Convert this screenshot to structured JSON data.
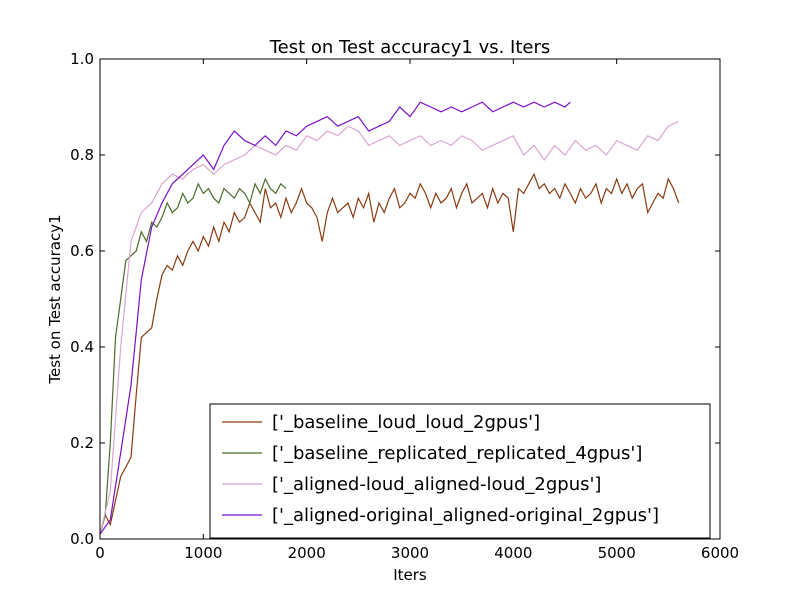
{
  "chart_data": {
    "type": "line",
    "title": "Test on Test accuracy1  vs. Iters",
    "xlabel": "Iters",
    "ylabel": "Test on Test accuracy1",
    "xlim": [
      0,
      6000
    ],
    "ylim": [
      0.0,
      1.0
    ],
    "xticks": [
      "0",
      "1000",
      "2000",
      "3000",
      "4000",
      "5000",
      "6000"
    ],
    "yticks": [
      "0.0",
      "0.2",
      "0.4",
      "0.6",
      "0.8",
      "1.0"
    ],
    "grid": false,
    "legend_position": "lower-right",
    "series": [
      {
        "name": "['_baseline_loud_loud_2gpus']",
        "color": "#8B3A0F",
        "x": [
          0,
          50,
          100,
          150,
          200,
          250,
          300,
          350,
          400,
          450,
          500,
          550,
          600,
          650,
          700,
          750,
          800,
          850,
          900,
          950,
          1000,
          1050,
          1100,
          1150,
          1200,
          1250,
          1300,
          1350,
          1400,
          1450,
          1500,
          1550,
          1600,
          1650,
          1700,
          1750,
          1800,
          1850,
          1900,
          1950,
          2000,
          2050,
          2100,
          2150,
          2200,
          2250,
          2300,
          2350,
          2400,
          2450,
          2500,
          2550,
          2600,
          2650,
          2700,
          2750,
          2800,
          2850,
          2900,
          2950,
          3000,
          3050,
          3100,
          3150,
          3200,
          3250,
          3300,
          3350,
          3400,
          3450,
          3500,
          3550,
          3600,
          3650,
          3700,
          3750,
          3800,
          3850,
          3900,
          3950,
          4000,
          4050,
          4100,
          4150,
          4200,
          4250,
          4300,
          4350,
          4400,
          4450,
          4500,
          4550,
          4600,
          4650,
          4700,
          4750,
          4800,
          4850,
          4900,
          4950,
          5000,
          5050,
          5100,
          5150,
          5200,
          5250,
          5300,
          5350,
          5400,
          5450,
          5500,
          5550,
          5600
        ],
        "values": [
          0.01,
          0.05,
          0.03,
          0.08,
          0.13,
          0.15,
          0.17,
          0.3,
          0.42,
          0.43,
          0.44,
          0.5,
          0.55,
          0.57,
          0.56,
          0.59,
          0.57,
          0.6,
          0.62,
          0.6,
          0.63,
          0.61,
          0.65,
          0.62,
          0.66,
          0.64,
          0.68,
          0.66,
          0.67,
          0.7,
          0.68,
          0.66,
          0.73,
          0.69,
          0.7,
          0.67,
          0.71,
          0.68,
          0.7,
          0.73,
          0.7,
          0.69,
          0.67,
          0.62,
          0.68,
          0.71,
          0.68,
          0.69,
          0.7,
          0.67,
          0.71,
          0.69,
          0.72,
          0.66,
          0.7,
          0.68,
          0.71,
          0.73,
          0.69,
          0.7,
          0.72,
          0.71,
          0.74,
          0.72,
          0.69,
          0.72,
          0.7,
          0.71,
          0.73,
          0.69,
          0.72,
          0.74,
          0.7,
          0.71,
          0.72,
          0.69,
          0.73,
          0.7,
          0.72,
          0.71,
          0.64,
          0.73,
          0.72,
          0.74,
          0.76,
          0.73,
          0.74,
          0.72,
          0.73,
          0.71,
          0.74,
          0.72,
          0.7,
          0.73,
          0.71,
          0.72,
          0.74,
          0.7,
          0.73,
          0.72,
          0.75,
          0.72,
          0.74,
          0.71,
          0.73,
          0.74,
          0.68,
          0.7,
          0.72,
          0.71,
          0.75,
          0.73,
          0.7
        ]
      },
      {
        "name": "['_baseline_replicated_replicated_4gpus']",
        "color": "#4B6B2A",
        "x": [
          0,
          50,
          100,
          150,
          200,
          250,
          300,
          350,
          400,
          450,
          500,
          550,
          600,
          650,
          700,
          750,
          800,
          850,
          900,
          950,
          1000,
          1050,
          1100,
          1150,
          1200,
          1250,
          1300,
          1350,
          1400,
          1450,
          1500,
          1550,
          1600,
          1650,
          1700,
          1750,
          1800
        ],
        "values": [
          0.01,
          0.05,
          0.2,
          0.42,
          0.5,
          0.58,
          0.59,
          0.6,
          0.64,
          0.62,
          0.66,
          0.65,
          0.67,
          0.7,
          0.68,
          0.69,
          0.72,
          0.7,
          0.71,
          0.74,
          0.72,
          0.73,
          0.71,
          0.7,
          0.73,
          0.72,
          0.71,
          0.73,
          0.72,
          0.7,
          0.74,
          0.72,
          0.75,
          0.73,
          0.72,
          0.74,
          0.73
        ]
      },
      {
        "name": "['_aligned-loud_aligned-loud_2gpus']",
        "color": "#D8A8D0",
        "x": [
          0,
          100,
          200,
          300,
          400,
          500,
          600,
          700,
          800,
          900,
          1000,
          1100,
          1200,
          1300,
          1400,
          1500,
          1600,
          1700,
          1800,
          1900,
          2000,
          2100,
          2200,
          2300,
          2400,
          2500,
          2600,
          2700,
          2800,
          2900,
          3000,
          3100,
          3200,
          3300,
          3400,
          3500,
          3600,
          3700,
          3800,
          3900,
          4000,
          4100,
          4200,
          4300,
          4400,
          4500,
          4600,
          4700,
          4800,
          4900,
          5000,
          5100,
          5200,
          5300,
          5400,
          5500,
          5600
        ],
        "values": [
          0.01,
          0.1,
          0.4,
          0.62,
          0.68,
          0.7,
          0.74,
          0.76,
          0.75,
          0.77,
          0.78,
          0.76,
          0.78,
          0.79,
          0.8,
          0.82,
          0.81,
          0.8,
          0.82,
          0.81,
          0.84,
          0.83,
          0.85,
          0.84,
          0.86,
          0.85,
          0.82,
          0.83,
          0.84,
          0.82,
          0.83,
          0.84,
          0.82,
          0.83,
          0.82,
          0.84,
          0.83,
          0.81,
          0.82,
          0.83,
          0.84,
          0.8,
          0.82,
          0.79,
          0.82,
          0.8,
          0.83,
          0.81,
          0.82,
          0.8,
          0.83,
          0.82,
          0.81,
          0.84,
          0.83,
          0.86,
          0.87
        ]
      },
      {
        "name": "['_aligned-original_aligned-original_2gpus']",
        "color": "#7A0FC8",
        "x": [
          0,
          100,
          200,
          300,
          400,
          500,
          600,
          700,
          800,
          900,
          1000,
          1100,
          1200,
          1300,
          1400,
          1500,
          1600,
          1700,
          1800,
          1900,
          2000,
          2100,
          2200,
          2300,
          2400,
          2500,
          2600,
          2700,
          2800,
          2900,
          3000,
          3100,
          3200,
          3300,
          3400,
          3500,
          3600,
          3700,
          3800,
          3900,
          4000,
          4100,
          4200,
          4300,
          4400,
          4500,
          4550
        ],
        "values": [
          0.01,
          0.04,
          0.18,
          0.32,
          0.54,
          0.65,
          0.7,
          0.74,
          0.76,
          0.78,
          0.8,
          0.77,
          0.82,
          0.85,
          0.83,
          0.82,
          0.84,
          0.82,
          0.85,
          0.84,
          0.86,
          0.87,
          0.88,
          0.86,
          0.87,
          0.88,
          0.85,
          0.86,
          0.87,
          0.9,
          0.88,
          0.91,
          0.9,
          0.89,
          0.9,
          0.89,
          0.9,
          0.91,
          0.89,
          0.9,
          0.91,
          0.9,
          0.91,
          0.9,
          0.91,
          0.9,
          0.91
        ]
      }
    ]
  }
}
